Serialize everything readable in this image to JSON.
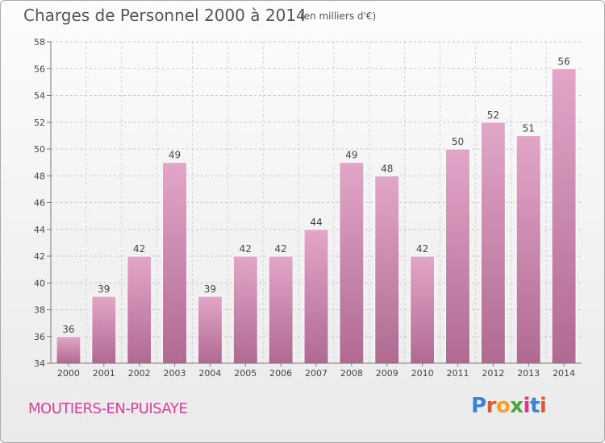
{
  "header": {
    "title": "Charges de Personnel 2000 à 2014",
    "subtitle": "(en milliers d'€)"
  },
  "footer": {
    "place": "MOUTIERS-EN-PUISAYE",
    "logo_letters": [
      "P",
      "r",
      "o",
      "x",
      "i",
      "t",
      "i"
    ],
    "logo_colors": [
      "#3a84d0",
      "#e05a2c",
      "#f2a22d",
      "#4aa33d",
      "#d03a8f",
      "#3a84d0",
      "#e05a2c"
    ]
  },
  "chart_data": {
    "type": "bar",
    "title": "Charges de Personnel 2000 à 2014",
    "subtitle": "(en milliers d'€)",
    "categories": [
      "2000",
      "2001",
      "2002",
      "2003",
      "2004",
      "2005",
      "2006",
      "2007",
      "2008",
      "2009",
      "2010",
      "2011",
      "2012",
      "2013",
      "2014"
    ],
    "values": [
      36,
      39,
      42,
      49,
      39,
      42,
      42,
      44,
      49,
      48,
      42,
      50,
      52,
      51,
      56
    ],
    "ylim": [
      34,
      58
    ],
    "yticks": [
      34,
      36,
      38,
      40,
      42,
      44,
      46,
      48,
      50,
      52,
      54,
      56,
      58
    ],
    "grid": true,
    "bar_color": "#cf7fae",
    "xlabel": "",
    "ylabel": ""
  }
}
